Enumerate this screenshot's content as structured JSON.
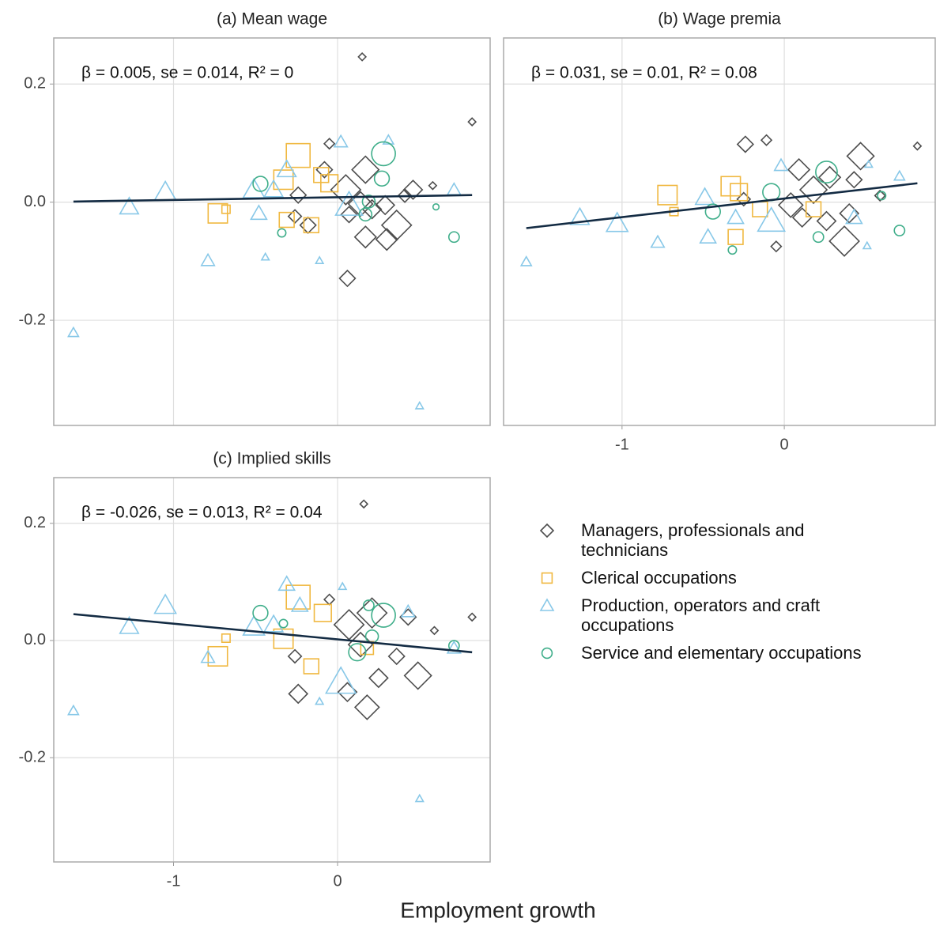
{
  "chart_data": [
    {
      "type": "scatter",
      "title": "(a) Mean wage",
      "annotation": "β = 0.005, se = 0.014, R² = 0",
      "xlim": [
        -1.73,
        0.93
      ],
      "ylim": [
        -0.378,
        0.278
      ],
      "xticks": [
        -1,
        0
      ],
      "yticks": [
        -0.2,
        {
          "value": 0,
          "label": "0.0"
        },
        0.2
      ],
      "grid": true,
      "series": [
        {
          "x": [
            0.15,
            0.82,
            -0.05,
            0.06,
            -0.26,
            -0.18,
            -0.08,
            0.05,
            0.17,
            0.21,
            0.36,
            0.46,
            0.58,
            0.17,
            0.07,
            -0.24,
            0.3,
            0.41,
            0.14,
            0.29
          ],
          "values": [
            0.246,
            0.136,
            0.099,
            -0.129,
            -0.024,
            -0.039,
            0.055,
            0.021,
            0.055,
            -0.012,
            -0.039,
            0.021,
            0.028,
            -0.059,
            -0.021,
            0.012,
            -0.063,
            0.011,
            -0.003,
            -0.005
          ],
          "sizes": [
            1,
            1,
            2,
            4,
            3,
            4,
            4,
            9,
            8,
            5,
            9,
            5,
            1,
            6,
            4,
            4,
            6,
            3,
            7,
            5
          ]
        },
        {
          "x": [
            -0.24,
            -0.33,
            -0.73,
            -0.68,
            -0.16,
            -0.31,
            -0.05,
            -0.1
          ],
          "values": [
            0.079,
            0.038,
            -0.019,
            -0.012,
            -0.039,
            -0.03,
            0.032,
            0.046
          ],
          "sizes": [
            9,
            7,
            7,
            2,
            5,
            5,
            6,
            5
          ]
        },
        {
          "x": [
            -1.61,
            -1.27,
            -1.05,
            -0.79,
            -0.48,
            -0.44,
            -0.31,
            -0.39,
            -0.11,
            0.02,
            0.31,
            0.5,
            0.71,
            0.07,
            -0.51
          ],
          "values": [
            -0.221,
            -0.008,
            0.017,
            -0.099,
            -0.019,
            -0.093,
            0.055,
            0.021,
            -0.099,
            0.102,
            0.105,
            -0.345,
            0.021,
            -0.005,
            0.021
          ],
          "sizes": [
            2,
            5,
            6,
            3,
            4,
            1,
            5,
            5,
            1,
            3,
            2,
            1,
            3,
            8,
            6
          ]
        },
        {
          "x": [
            0.28,
            -0.47,
            0.71,
            0.6,
            -0.34,
            0.27,
            0.19,
            0.17
          ],
          "values": [
            0.082,
            0.031,
            -0.059,
            -0.008,
            -0.052,
            0.04,
            0.001,
            -0.021
          ],
          "sizes": [
            9,
            5,
            3,
            1,
            2,
            5,
            4,
            4
          ]
        }
      ],
      "fit": {
        "x": [
          -1.61,
          0.82
        ],
        "y": [
          0.001,
          0.012
        ]
      }
    },
    {
      "type": "scatter",
      "title": "(b) Wage premia",
      "annotation": "β = 0.031, se = 0.01, R² = 0.08",
      "xlim": [
        -1.73,
        0.93
      ],
      "ylim": [
        -0.378,
        0.278
      ],
      "xticks": [
        -1,
        0
      ],
      "yticks": [
        -0.2,
        {
          "value": 0,
          "label": "0.0"
        },
        0.2
      ],
      "grid": true,
      "series": [
        {
          "x": [
            0.82,
            -0.24,
            -0.11,
            0.47,
            0.37,
            -0.05,
            0.09,
            0.18,
            0.28,
            0.4,
            0.59,
            0.04,
            0.26,
            -0.25,
            0.43,
            0.11
          ],
          "values": [
            0.095,
            0.098,
            0.105,
            0.078,
            -0.066,
            -0.075,
            0.055,
            0.021,
            0.042,
            -0.019,
            0.011,
            -0.005,
            -0.032,
            0.005,
            0.038,
            -0.026
          ],
          "sizes": [
            1,
            4,
            2,
            8,
            9,
            2,
            6,
            8,
            6,
            5,
            2,
            7,
            5,
            3,
            4,
            5
          ]
        },
        {
          "x": [
            -0.72,
            -0.68,
            -0.33,
            -0.3,
            -0.15,
            0.18,
            -0.28
          ],
          "values": [
            0.012,
            -0.016,
            0.027,
            -0.059,
            -0.012,
            -0.012,
            0.017
          ],
          "sizes": [
            7,
            2,
            7,
            5,
            5,
            5,
            6
          ]
        },
        {
          "x": [
            -1.59,
            -1.26,
            -1.03,
            -0.78,
            -0.47,
            -0.3,
            -0.08,
            -0.02,
            0.52,
            0.71,
            0.51,
            -0.49,
            0.43
          ],
          "values": [
            -0.101,
            -0.026,
            -0.036,
            -0.068,
            -0.059,
            -0.026,
            -0.032,
            0.062,
            0.064,
            0.044,
            -0.074,
            0.008,
            -0.026
          ],
          "sizes": [
            2,
            5,
            6,
            3,
            4,
            4,
            8,
            3,
            1,
            2,
            1,
            5,
            4
          ]
        },
        {
          "x": [
            0.71,
            0.21,
            -0.32,
            -0.44,
            -0.08,
            0.26,
            0.6
          ],
          "values": [
            -0.048,
            -0.059,
            -0.081,
            -0.016,
            0.017,
            0.051,
            0.011
          ],
          "sizes": [
            3,
            3,
            2,
            5,
            6,
            8,
            2
          ]
        }
      ],
      "fit": {
        "x": [
          -1.59,
          0.82
        ],
        "y": [
          -0.044,
          0.032
        ]
      }
    },
    {
      "type": "scatter",
      "title": "(c) Implied skills",
      "annotation": "β = -0.026, se = 0.013, R² = 0.04",
      "xlim": [
        -1.73,
        0.93
      ],
      "ylim": [
        -0.378,
        0.278
      ],
      "xticks": [
        -1,
        0
      ],
      "yticks": [
        -0.2,
        {
          "value": 0,
          "label": "0.0"
        },
        0.2
      ],
      "grid": true,
      "series": [
        {
          "x": [
            0.82,
            0.16,
            -0.24,
            0.06,
            0.18,
            0.49,
            -0.05,
            0.59,
            0.36,
            0.25,
            0.07,
            0.21,
            -0.26,
            0.43,
            0.14
          ],
          "values": [
            0.04,
            0.233,
            -0.091,
            -0.088,
            -0.114,
            -0.06,
            0.07,
            0.017,
            -0.027,
            -0.064,
            0.027,
            0.047,
            -0.027,
            0.04,
            -0.007
          ],
          "sizes": [
            1,
            1,
            5,
            5,
            7,
            8,
            2,
            1,
            4,
            5,
            9,
            9,
            3,
            4,
            7
          ]
        },
        {
          "x": [
            -0.24,
            -0.73,
            -0.68,
            -0.33,
            -0.16,
            -0.09,
            0.18
          ],
          "values": [
            0.074,
            -0.027,
            0.004,
            0.003,
            -0.044,
            0.047,
            -0.013
          ],
          "sizes": [
            9,
            7,
            2,
            7,
            5,
            6,
            4
          ]
        },
        {
          "x": [
            -1.61,
            -1.27,
            -1.05,
            -0.79,
            -0.31,
            -0.23,
            -0.11,
            0.5,
            0.71,
            0.02,
            -0.39,
            0.03,
            0.43,
            -0.51
          ],
          "values": [
            -0.12,
            0.024,
            0.06,
            -0.029,
            0.096,
            0.06,
            -0.104,
            -0.27,
            -0.013,
            -0.071,
            0.027,
            0.092,
            0.049,
            0.023
          ],
          "sizes": [
            2,
            5,
            6,
            3,
            4,
            4,
            1,
            1,
            3,
            9,
            5,
            1,
            3,
            6
          ]
        },
        {
          "x": [
            -0.47,
            0.28,
            0.71,
            0.19,
            -0.33,
            0.12,
            0.21
          ],
          "values": [
            0.047,
            0.043,
            -0.009,
            0.06,
            0.029,
            -0.02,
            0.007
          ],
          "sizes": [
            5,
            9,
            3,
            3,
            2,
            6,
            4
          ]
        }
      ],
      "fit": {
        "x": [
          -1.61,
          0.82
        ],
        "y": [
          0.045,
          -0.02
        ]
      }
    }
  ],
  "xlabel": "Employment growth",
  "legend": [
    {
      "name": "Managers, professionals and technicians",
      "color": "#4d4d4d",
      "marker": "diamond"
    },
    {
      "name": "Clerical occupations",
      "color": "#f0b840",
      "marker": "square"
    },
    {
      "name": "Production, operators and craft occupations",
      "color": "#88c8e8",
      "marker": "triangle"
    },
    {
      "name": "Service and elementary occupations",
      "color": "#3fae8a",
      "marker": "circle"
    }
  ],
  "fit_color": "#132b43"
}
